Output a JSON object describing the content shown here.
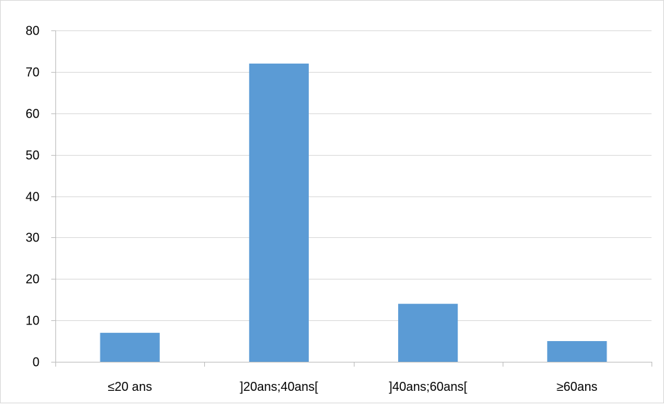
{
  "chart_data": {
    "type": "bar",
    "title": "",
    "xlabel": "",
    "ylabel": "",
    "categories": [
      "≤20 ans",
      "]20ans;40ans[",
      "]40ans;60ans[",
      "≥60ans"
    ],
    "values": [
      7,
      72,
      14,
      5
    ],
    "ylim": [
      0,
      80
    ],
    "yticks": [
      0,
      10,
      20,
      30,
      40,
      50,
      60,
      70,
      80
    ],
    "grid": true,
    "legend": "none",
    "bar_color": "#5b9bd5",
    "grid_color": "#d9d9d9",
    "axis_color": "#bfbfbf"
  }
}
